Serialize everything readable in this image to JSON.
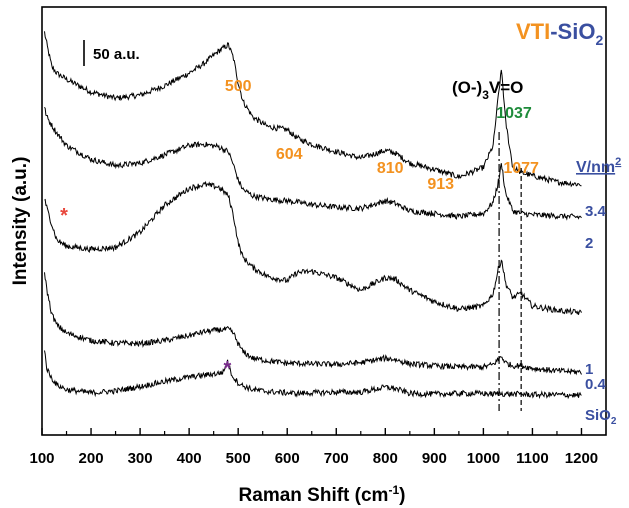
{
  "chart_data": {
    "type": "line",
    "title": "VTI-SiO2",
    "title_parts": {
      "a": "VTI",
      "b": "-SiO",
      "sub": "2"
    },
    "xlabel": "Raman Shift (cm-1)",
    "xlabel_parts": {
      "main": "Raman Shift (cm",
      "sup": "-1",
      "end": ")"
    },
    "ylabel": "Intensity (a.u.)",
    "xlim": [
      100,
      1250
    ],
    "x_ticks": [
      "100",
      "200",
      "300",
      "400",
      "500",
      "600",
      "700",
      "800",
      "900",
      "1000",
      "1100",
      "1200"
    ],
    "scale_bar": "50 a.u.",
    "legend_title": "V/nm2",
    "legend_title_parts": {
      "main": "V/nm",
      "sup": "2"
    },
    "peak_labels": [
      {
        "text": "500",
        "x": 500
      },
      {
        "text": "604",
        "x": 604
      },
      {
        "text": "810",
        "x": 810
      },
      {
        "text": "913",
        "x": 913
      },
      {
        "text": "1077",
        "x": 1077
      }
    ],
    "species_label": {
      "main": "(O-)",
      "sub": "3",
      "end": "V=O"
    },
    "band_1037": "1037",
    "dashed_lines_x": [
      1032,
      1077
    ],
    "asterisks": [
      {
        "text": "*",
        "x": 145
      },
      {
        "text": "*",
        "x": 478
      }
    ],
    "series": [
      {
        "name": "3.4",
        "x": [
          105,
          110,
          120,
          130,
          150,
          200,
          250,
          300,
          350,
          400,
          430,
          460,
          480,
          490,
          500,
          510,
          530,
          560,
          600,
          620,
          650,
          700,
          750,
          800,
          820,
          850,
          900,
          950,
          1000,
          1020,
          1030,
          1037,
          1045,
          1060,
          1077,
          1100,
          1150,
          1200
        ],
        "y": [
          840,
          820,
          785,
          775,
          765,
          745,
          735,
          740,
          755,
          775,
          790,
          810,
          820,
          800,
          760,
          730,
          705,
          690,
          685,
          672,
          662,
          650,
          640,
          652,
          648,
          632,
          622,
          610,
          625,
          660,
          735,
          782,
          700,
          625,
          617,
          612,
          602,
          598
        ]
      },
      {
        "name": "2",
        "x": [
          105,
          110,
          120,
          130,
          150,
          200,
          250,
          300,
          350,
          400,
          430,
          460,
          480,
          490,
          500,
          510,
          530,
          560,
          600,
          620,
          650,
          700,
          750,
          800,
          820,
          850,
          900,
          950,
          1000,
          1020,
          1030,
          1037,
          1045,
          1060,
          1077,
          1100,
          1150,
          1200
        ],
        "y": [
          720,
          705,
          692,
          680,
          660,
          638,
          628,
          632,
          645,
          660,
          662,
          658,
          650,
          630,
          605,
          590,
          580,
          575,
          572,
          570,
          566,
          562,
          560,
          572,
          568,
          556,
          552,
          547,
          552,
          570,
          600,
          632,
          585,
          556,
          552,
          550,
          548,
          546
        ]
      },
      {
        "name": "1",
        "x": [
          105,
          110,
          120,
          130,
          150,
          200,
          250,
          300,
          350,
          400,
          430,
          460,
          480,
          490,
          500,
          510,
          530,
          560,
          600,
          620,
          650,
          700,
          750,
          800,
          820,
          850,
          900,
          950,
          1000,
          1020,
          1030,
          1037,
          1045,
          1060,
          1077,
          1100,
          1150,
          1200
        ],
        "y": [
          575,
          560,
          535,
          510,
          500,
          495,
          498,
          522,
          565,
          592,
          598,
          594,
          580,
          550,
          505,
          482,
          466,
          452,
          445,
          458,
          460,
          450,
          430,
          450,
          448,
          430,
          412,
          400,
          405,
          425,
          462,
          480,
          442,
          418,
          425,
          405,
          398,
          394
        ]
      },
      {
        "name": "0.4",
        "x": [
          105,
          110,
          120,
          130,
          150,
          200,
          250,
          300,
          350,
          400,
          430,
          460,
          480,
          490,
          500,
          510,
          530,
          560,
          600,
          620,
          650,
          700,
          750,
          800,
          820,
          850,
          900,
          950,
          1000,
          1020,
          1030,
          1037,
          1045,
          1060,
          1077,
          1100,
          1150,
          1200
        ],
        "y": [
          460,
          430,
          392,
          375,
          362,
          350,
          346,
          345,
          350,
          358,
          364,
          367,
          368,
          362,
          345,
          332,
          322,
          318,
          314,
          314,
          313,
          312,
          315,
          322,
          320,
          313,
          310,
          308,
          308,
          312,
          320,
          325,
          315,
          310,
          310,
          306,
          302,
          300
        ]
      },
      {
        "name": "SiO2",
        "x": [
          105,
          110,
          120,
          130,
          150,
          200,
          250,
          300,
          350,
          400,
          430,
          460,
          470,
          478,
          485,
          490,
          500,
          510,
          530,
          560,
          600,
          620,
          650,
          700,
          750,
          800,
          820,
          850,
          900,
          950,
          1000,
          1020,
          1030,
          1037,
          1045,
          1060,
          1077,
          1100,
          1150,
          1200
        ],
        "y": [
          335,
          305,
          290,
          280,
          272,
          267,
          270,
          277,
          285,
          292,
          295,
          298,
          300,
          318,
          300,
          292,
          283,
          278,
          272,
          269,
          267,
          266,
          267,
          268,
          268,
          276,
          274,
          266,
          265,
          266,
          266,
          265,
          266,
          266,
          265,
          265,
          265,
          264,
          264,
          263
        ]
      }
    ]
  },
  "colors": {
    "orange": "#F39220",
    "blue": "#3A4FA0",
    "green": "#1E8B3A",
    "red": "#E8473C",
    "purple": "#7A2C8E",
    "black": "#000000"
  }
}
